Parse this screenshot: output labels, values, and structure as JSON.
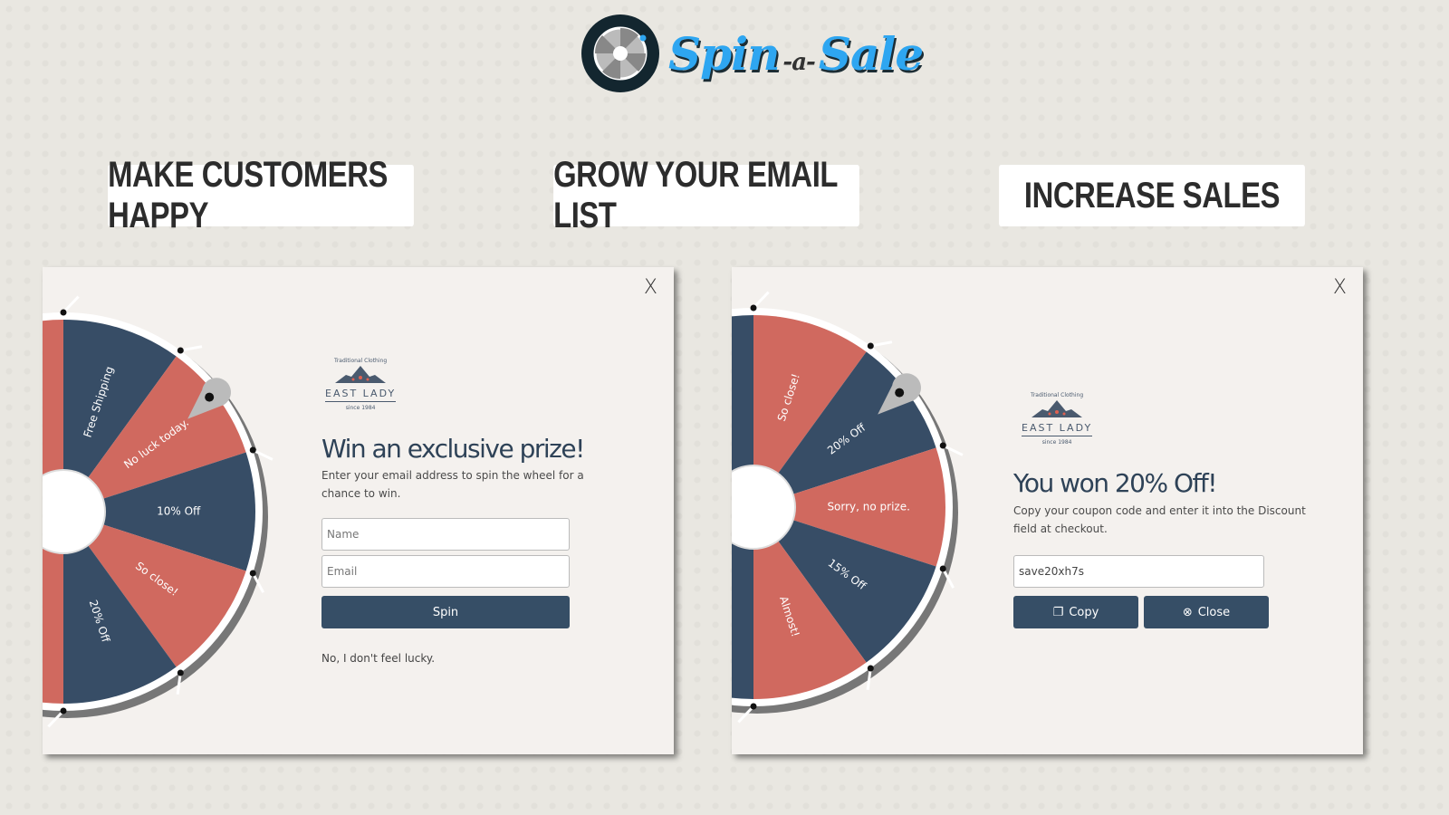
{
  "logo": {
    "text_main": "Spin",
    "text_mid": "-a-",
    "text_end": "Sale"
  },
  "banners": [
    "MAKE CUSTOMERS HAPPY",
    "GROW YOUR EMAIL LIST",
    "INCREASE SALES"
  ],
  "colors": {
    "wheel_red": "#d0695f",
    "wheel_blue": "#374d66",
    "button": "#364e66",
    "accent": "#2ea6f1"
  },
  "brand": {
    "tagline": "Traditional Clothing",
    "name": "EAST LADY",
    "since": "since 1984"
  },
  "left_modal": {
    "close": "X",
    "wheel_labels": [
      "Free Shipping",
      "No luck today.",
      "10% Off",
      "So close!",
      "20% Off"
    ],
    "title": "Win an exclusive prize!",
    "description": "Enter your email address to spin the wheel for a chance to win.",
    "name_placeholder": "Name",
    "email_placeholder": "Email",
    "spin_label": "Spin",
    "decline_label": "No, I don't feel lucky."
  },
  "right_modal": {
    "close": "X",
    "wheel_labels": [
      "So close!",
      "20% Off",
      "Sorry, no prize.",
      "15% Off",
      "Almost!"
    ],
    "title": "You won 20% Off!",
    "description": "Copy your coupon code and enter it into the Discount field at checkout.",
    "coupon_code": "save20xh7s",
    "copy_label": "Copy",
    "close_label": "Close"
  }
}
